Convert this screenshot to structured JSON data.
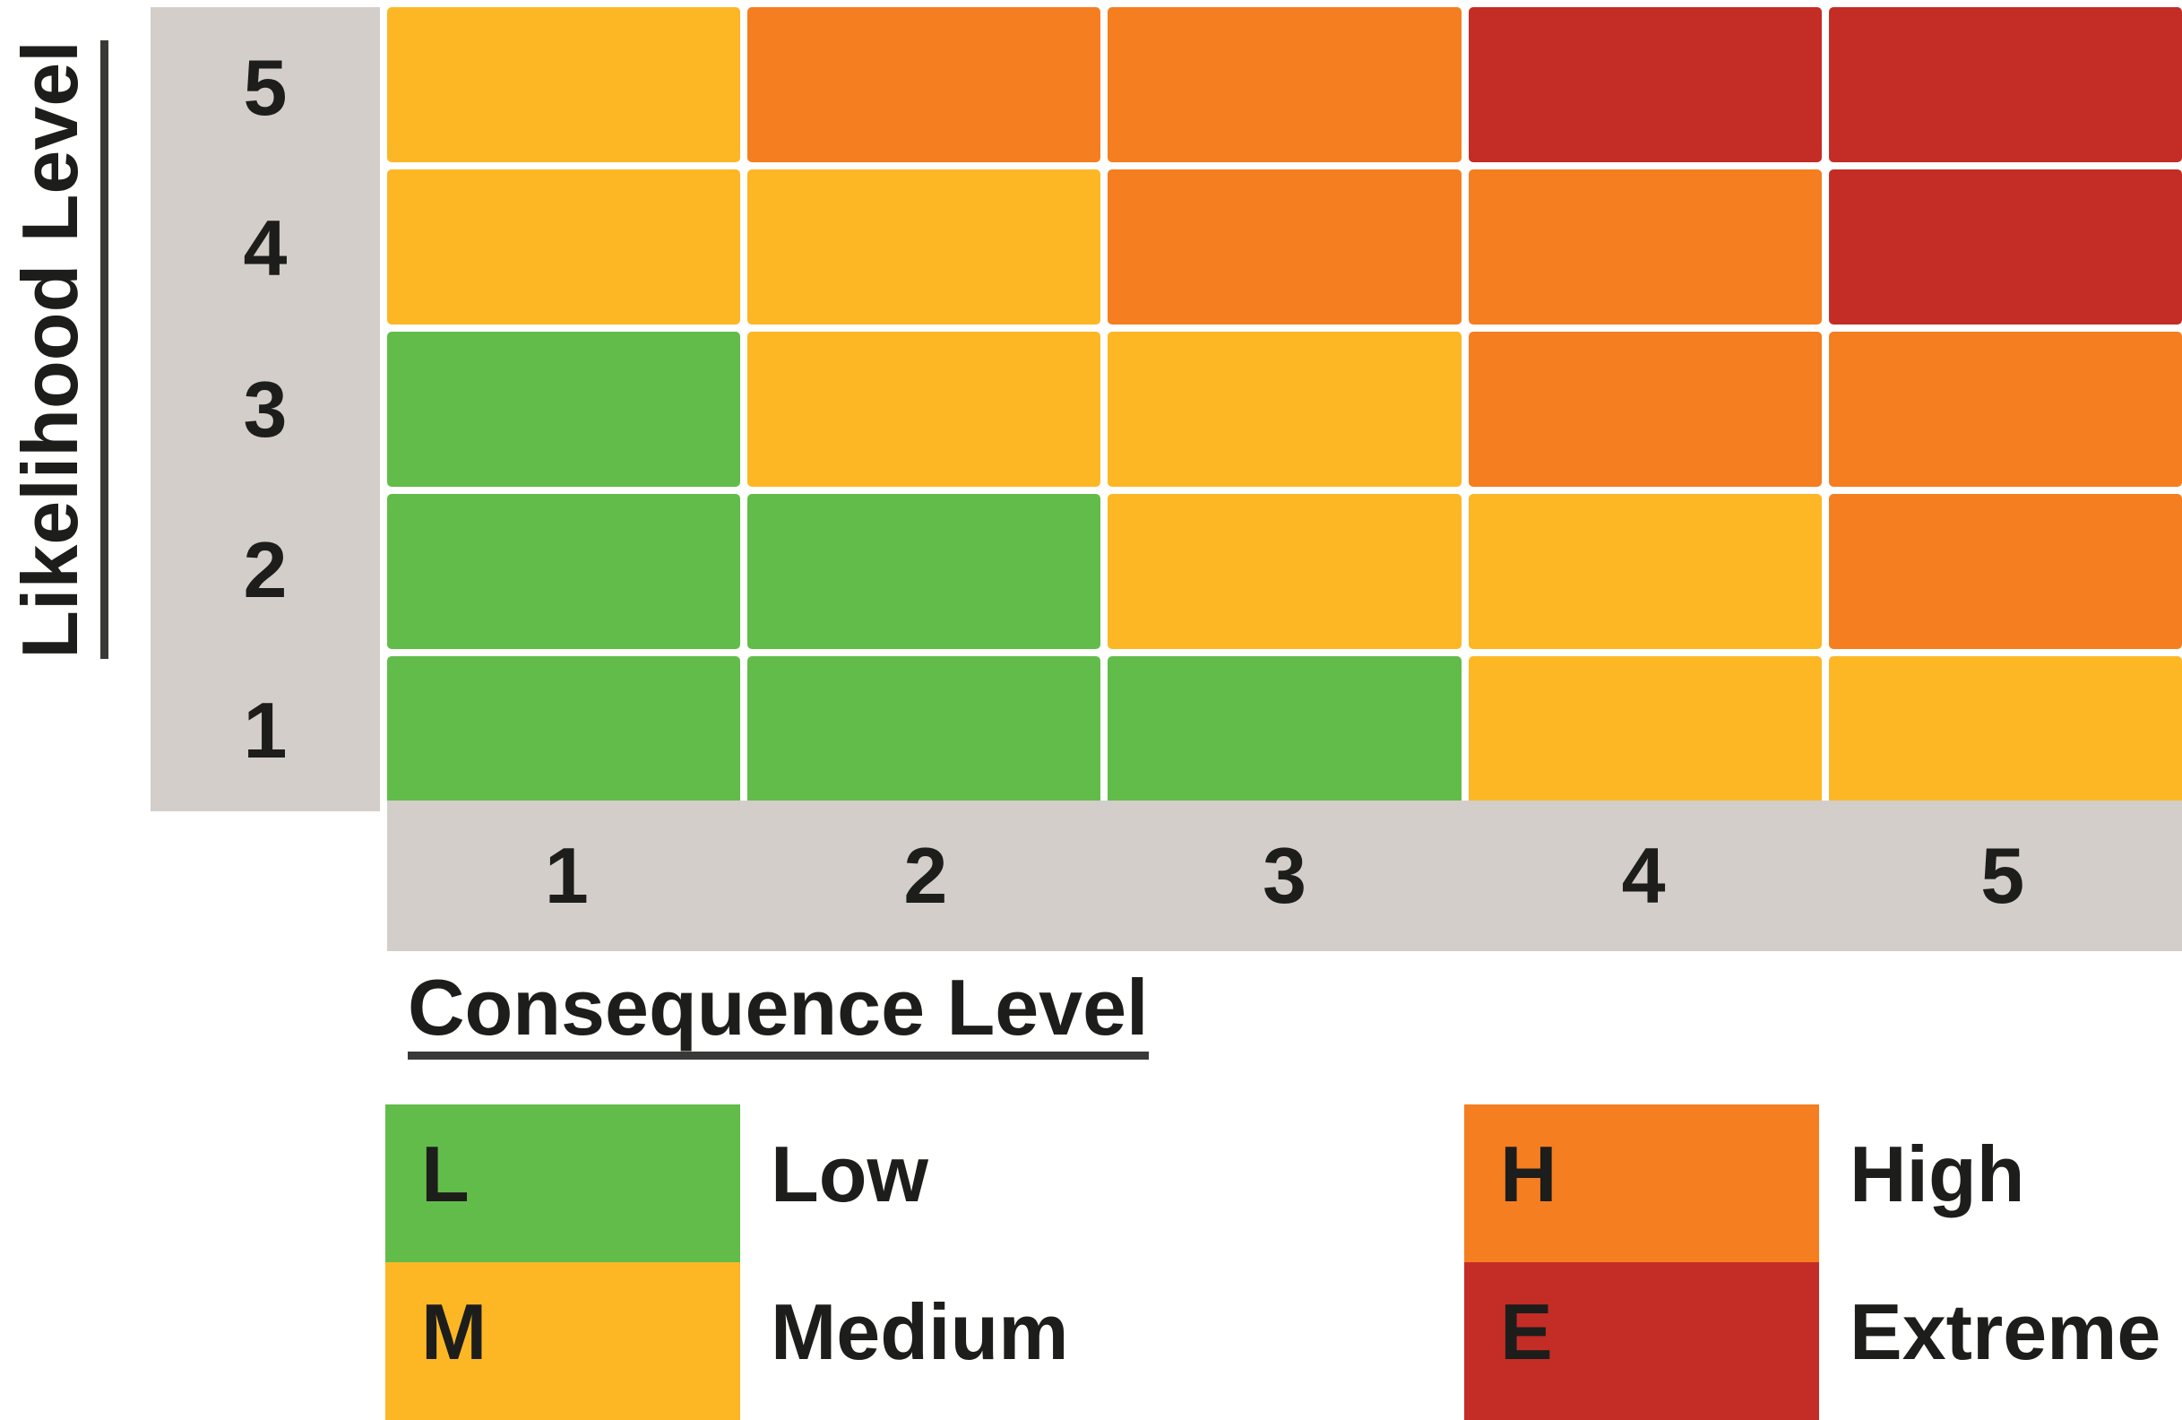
{
  "colors": {
    "L": "#62BC4A",
    "M": "#FDB725",
    "H": "#F57E20",
    "E": "#C32D26",
    "axis_band": "#D3CEC9",
    "text": "#1D1D1B",
    "underline": "#393937",
    "background": "#FFFFFF"
  },
  "chart_data": {
    "type": "heatmap",
    "xlabel": "Consequence Level",
    "ylabel": "Likelihood Level",
    "x_ticks": [
      "1",
      "2",
      "3",
      "4",
      "5"
    ],
    "y_ticks": [
      "5",
      "4",
      "3",
      "2",
      "1"
    ],
    "matrix": [
      [
        "M",
        "H",
        "H",
        "E",
        "E"
      ],
      [
        "M",
        "M",
        "H",
        "H",
        "E"
      ],
      [
        "L",
        "M",
        "M",
        "H",
        "H"
      ],
      [
        "L",
        "L",
        "M",
        "M",
        "H"
      ],
      [
        "L",
        "L",
        "L",
        "M",
        "M"
      ]
    ],
    "legend": [
      {
        "key": "L",
        "label": "Low",
        "color": "#62BC4A"
      },
      {
        "key": "M",
        "label": "Medium",
        "color": "#FDB725"
      },
      {
        "key": "H",
        "label": "High",
        "color": "#F57E20"
      },
      {
        "key": "E",
        "label": "Extreme",
        "color": "#C32D26"
      }
    ],
    "legend_position": "bottom",
    "grid": false
  }
}
